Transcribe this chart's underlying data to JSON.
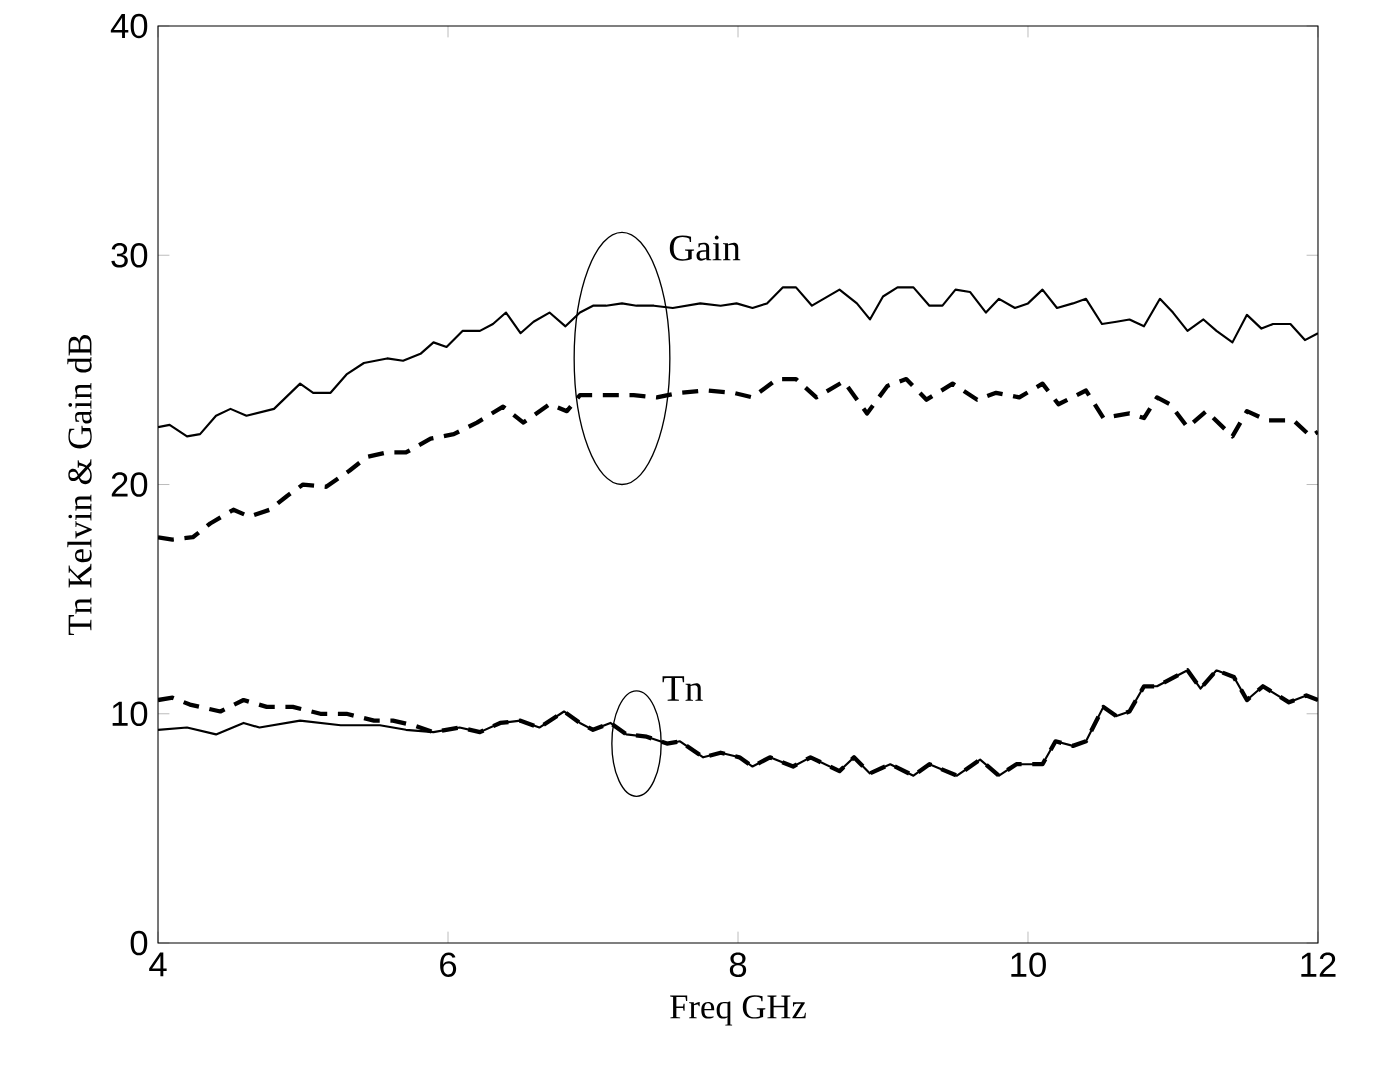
{
  "chart_data": {
    "type": "line",
    "xlabel": "Freq GHz",
    "ylabel": "Tn Kelvin & Gain dB",
    "xlim": [
      4,
      12
    ],
    "ylim": [
      0,
      40
    ],
    "xticks": [
      4,
      6,
      8,
      10,
      12
    ],
    "yticks": [
      0,
      10,
      20,
      30,
      40
    ],
    "grid": false,
    "legend": false,
    "marker": "none",
    "annotations": [
      "Gain",
      "Tn"
    ],
    "series": [
      {
        "color": "#000000",
        "line_style": "solid",
        "x": [
          4.0,
          4.08,
          4.2,
          4.29,
          4.4,
          4.5,
          4.61,
          4.8,
          4.98,
          5.07,
          5.19,
          5.3,
          5.42,
          5.58,
          5.69,
          5.81,
          5.9,
          5.99,
          6.1,
          6.22,
          6.31,
          6.4,
          6.5,
          6.59,
          6.7,
          6.81,
          6.91,
          7.0,
          7.09,
          7.2,
          7.3,
          7.42,
          7.55,
          7.74,
          7.88,
          7.99,
          8.1,
          8.2,
          8.31,
          8.4,
          8.51,
          8.7,
          8.82,
          8.91,
          9.0,
          9.1,
          9.21,
          9.32,
          9.41,
          9.5,
          9.6,
          9.71,
          9.8,
          9.91,
          10.0,
          10.1,
          10.2,
          10.31,
          10.4,
          10.51,
          10.61,
          10.7,
          10.8,
          10.91,
          11.0,
          11.1,
          11.21,
          11.3,
          11.41,
          11.51,
          11.61,
          11.69,
          11.81,
          11.91,
          12.0
        ],
        "values": [
          22.5,
          22.6,
          22.1,
          22.2,
          23.0,
          23.3,
          23.0,
          23.3,
          24.4,
          24.0,
          24.0,
          24.8,
          25.3,
          25.5,
          25.4,
          25.7,
          26.2,
          26.0,
          26.7,
          26.7,
          27.0,
          27.5,
          26.6,
          27.1,
          27.5,
          26.9,
          27.5,
          27.8,
          27.8,
          27.9,
          27.8,
          27.8,
          27.7,
          27.9,
          27.8,
          27.9,
          27.7,
          27.9,
          28.6,
          28.6,
          27.8,
          28.5,
          27.9,
          27.2,
          28.2,
          28.6,
          28.6,
          27.8,
          27.8,
          28.5,
          28.4,
          27.5,
          28.1,
          27.7,
          27.9,
          28.5,
          27.7,
          27.9,
          28.1,
          27.0,
          27.1,
          27.2,
          26.9,
          28.1,
          27.5,
          26.7,
          27.2,
          26.7,
          26.2,
          27.4,
          26.8,
          27.0,
          27.0,
          26.3,
          26.6
        ]
      },
      {
        "color": "#000000",
        "line_style": "dashed",
        "x": [
          4.0,
          4.1,
          4.24,
          4.36,
          4.52,
          4.63,
          4.77,
          4.89,
          5.0,
          5.16,
          5.32,
          5.44,
          5.58,
          5.71,
          5.88,
          6.04,
          6.2,
          6.38,
          6.52,
          6.7,
          6.82,
          6.91,
          7.09,
          7.28,
          7.44,
          7.6,
          7.78,
          7.97,
          8.1,
          8.27,
          8.4,
          8.54,
          8.73,
          8.89,
          9.03,
          9.16,
          9.3,
          9.48,
          9.65,
          9.78,
          9.94,
          10.1,
          10.21,
          10.4,
          10.52,
          10.7,
          10.8,
          10.89,
          10.98,
          11.1,
          11.23,
          11.41,
          11.51,
          11.65,
          11.83,
          11.95,
          12.0
        ],
        "values": [
          17.7,
          17.6,
          17.7,
          18.3,
          18.9,
          18.6,
          18.9,
          19.5,
          20.0,
          19.9,
          20.6,
          21.2,
          21.4,
          21.4,
          22.0,
          22.2,
          22.7,
          23.4,
          22.7,
          23.5,
          23.2,
          23.9,
          23.9,
          23.9,
          23.8,
          24.0,
          24.1,
          24.0,
          23.8,
          24.6,
          24.6,
          23.8,
          24.5,
          23.1,
          24.3,
          24.6,
          23.7,
          24.4,
          23.7,
          24.0,
          23.8,
          24.4,
          23.5,
          24.1,
          22.9,
          23.1,
          22.9,
          23.8,
          23.5,
          22.5,
          23.2,
          22.1,
          23.2,
          22.8,
          22.8,
          22.1,
          22.3
        ]
      },
      {
        "color": "#000000",
        "line_style": "solid",
        "x": [
          4.0,
          4.2,
          4.4,
          4.59,
          4.7,
          4.98,
          5.26,
          5.53,
          5.71,
          5.9,
          6.08,
          6.22,
          6.36,
          6.5,
          6.63,
          6.8,
          6.91,
          7.0,
          7.12,
          7.23,
          7.37,
          7.51,
          7.6,
          7.76,
          7.88,
          8.01,
          8.1,
          8.22,
          8.38,
          8.5,
          8.7,
          8.8,
          8.91,
          9.05,
          9.21,
          9.32,
          9.51,
          9.67,
          9.8,
          9.92,
          10.1,
          10.19,
          10.31,
          10.4,
          10.52,
          10.61,
          10.7,
          10.8,
          10.89,
          11.1,
          11.19,
          11.3,
          11.42,
          11.51,
          11.62,
          11.8,
          11.92,
          12.0
        ],
        "values": [
          9.3,
          9.4,
          9.1,
          9.6,
          9.4,
          9.7,
          9.5,
          9.5,
          9.3,
          9.2,
          9.4,
          9.2,
          9.6,
          9.7,
          9.4,
          10.1,
          9.6,
          9.3,
          9.6,
          9.1,
          9.0,
          8.7,
          8.8,
          8.1,
          8.3,
          8.1,
          7.7,
          8.1,
          7.7,
          8.1,
          7.5,
          8.1,
          7.4,
          7.8,
          7.3,
          7.8,
          7.3,
          8.0,
          7.3,
          7.8,
          7.8,
          8.8,
          8.6,
          8.8,
          10.3,
          9.9,
          10.1,
          11.2,
          11.2,
          11.9,
          11.1,
          11.9,
          11.6,
          10.6,
          11.2,
          10.5,
          10.8,
          10.6
        ]
      },
      {
        "color": "#000000",
        "line_style": "dashed",
        "x": [
          4.0,
          4.1,
          4.22,
          4.43,
          4.59,
          4.75,
          4.93,
          5.12,
          5.3,
          5.49,
          5.62,
          5.76,
          5.9,
          6.08,
          6.22,
          6.36,
          6.5,
          6.63,
          6.8,
          6.91,
          7.0,
          7.12,
          7.23,
          7.37,
          7.51,
          7.6,
          7.76,
          7.88,
          8.01,
          8.1,
          8.22,
          8.38,
          8.5,
          8.7,
          8.8,
          8.91,
          9.05,
          9.21,
          9.32,
          9.51,
          9.67,
          9.8,
          9.92,
          10.1,
          10.19,
          10.31,
          10.4,
          10.52,
          10.61,
          10.7,
          10.8,
          10.89,
          11.1,
          11.19,
          11.3,
          11.42,
          11.51,
          11.62,
          11.8,
          11.92,
          12.0
        ],
        "values": [
          10.6,
          10.7,
          10.4,
          10.1,
          10.6,
          10.3,
          10.3,
          10.0,
          10.0,
          9.7,
          9.7,
          9.5,
          9.2,
          9.4,
          9.2,
          9.6,
          9.7,
          9.4,
          10.1,
          9.6,
          9.3,
          9.6,
          9.1,
          9.0,
          8.7,
          8.8,
          8.1,
          8.3,
          8.1,
          7.7,
          8.1,
          7.7,
          8.1,
          7.5,
          8.1,
          7.4,
          7.8,
          7.3,
          7.8,
          7.3,
          8.0,
          7.3,
          7.8,
          7.8,
          8.8,
          8.6,
          8.8,
          10.3,
          9.9,
          10.1,
          11.2,
          11.2,
          11.9,
          11.1,
          11.9,
          11.6,
          10.6,
          11.2,
          10.5,
          10.8,
          10.6
        ]
      }
    ]
  }
}
